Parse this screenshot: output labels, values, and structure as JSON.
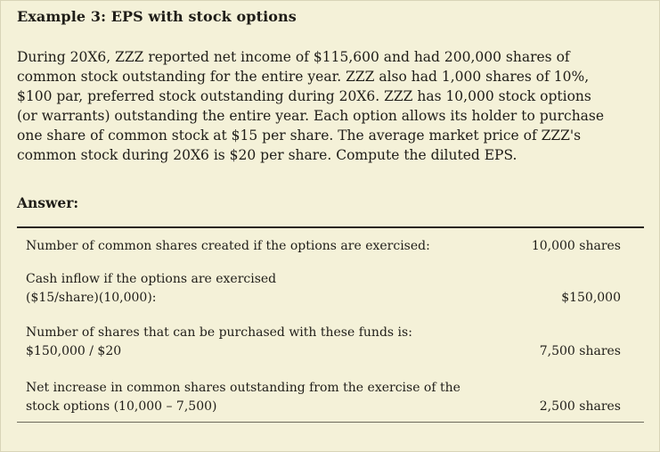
{
  "title": "Example 3: EPS with stock options",
  "problem_lines": [
    "During 20X6, ZZZ reported net income of $115,600 and had 200,000 shares of",
    "common stock outstanding for the entire year. ZZZ also had 1,000 shares of 10%,",
    "$100 par, preferred stock outstanding during 20X6. ZZZ has 10,000 stock options",
    "(or warrants) outstanding the entire year. Each option allows its holder to purchase",
    "one share of common stock at $15 per share. The average market price of ZZZ's",
    "common stock during 20X6 is $20 per share. Compute the diluted EPS."
  ],
  "answer_label": "Answer:",
  "rows": [
    {
      "desc": [
        "Number of common shares created if the options are exercised:"
      ],
      "value": "10,000 shares"
    },
    {
      "desc": [
        "Cash inflow if the options are exercised",
        "($15/share)(10,000):"
      ],
      "value": "$150,000"
    },
    {
      "desc": [
        "Number of shares that can be purchased with these funds is:",
        "$150,000 / $20"
      ],
      "value": "7,500 shares"
    },
    {
      "desc": [
        "Net increase in common shares outstanding from the exercise of the",
        "stock options (10,000 – 7,500)"
      ],
      "value": "2,500 shares"
    }
  ]
}
